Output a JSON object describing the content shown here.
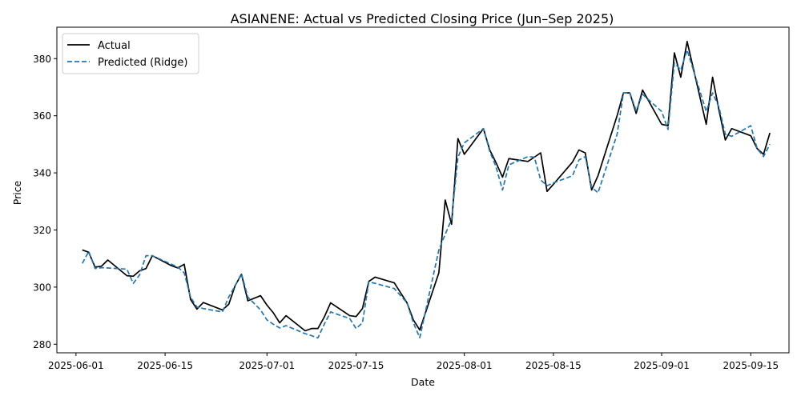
{
  "chart_data": {
    "type": "line",
    "title": "ASIANENE: Actual vs Predicted Closing Price (Jun–Sep 2025)",
    "xlabel": "Date",
    "ylabel": "Price",
    "xlim": [
      "2025-05-29",
      "2025-09-21"
    ],
    "ylim": [
      277,
      391
    ],
    "x_ticks": [
      "2025-06-01",
      "2025-06-15",
      "2025-07-01",
      "2025-07-15",
      "2025-08-01",
      "2025-08-15",
      "2025-09-01",
      "2025-09-15"
    ],
    "y_ticks": [
      280,
      300,
      320,
      340,
      360,
      380
    ],
    "grid": false,
    "legend_position": "upper-left",
    "series": [
      {
        "name": "Actual",
        "color": "#000000",
        "style": "solid",
        "points": [
          [
            "2025-06-02",
            313
          ],
          [
            "2025-06-03",
            312.2
          ],
          [
            "2025-06-04",
            307
          ],
          [
            "2025-06-05",
            307.3
          ],
          [
            "2025-06-06",
            309.5
          ],
          [
            "2025-06-09",
            304
          ],
          [
            "2025-06-10",
            303.8
          ],
          [
            "2025-06-11",
            305.7
          ],
          [
            "2025-06-12",
            306.5
          ],
          [
            "2025-06-13",
            311
          ],
          [
            "2025-06-16",
            307.5
          ],
          [
            "2025-06-17",
            306.7
          ],
          [
            "2025-06-18",
            308
          ],
          [
            "2025-06-19",
            295.7
          ],
          [
            "2025-06-20",
            292.3
          ],
          [
            "2025-06-21",
            294.6
          ],
          [
            "2025-06-24",
            292
          ],
          [
            "2025-06-25",
            294
          ],
          [
            "2025-06-26",
            300.5
          ],
          [
            "2025-06-27",
            304.5
          ],
          [
            "2025-06-28",
            295.2
          ],
          [
            "2025-06-30",
            297
          ],
          [
            "2025-07-01",
            293.7
          ],
          [
            "2025-07-02",
            291
          ],
          [
            "2025-07-03",
            287.5
          ],
          [
            "2025-07-04",
            290
          ],
          [
            "2025-07-07",
            284.7
          ],
          [
            "2025-07-08",
            285.5
          ],
          [
            "2025-07-09",
            285.5
          ],
          [
            "2025-07-10",
            289.5
          ],
          [
            "2025-07-11",
            294.5
          ],
          [
            "2025-07-14",
            290
          ],
          [
            "2025-07-15",
            289.7
          ],
          [
            "2025-07-16",
            292.5
          ],
          [
            "2025-07-17",
            302
          ],
          [
            "2025-07-18",
            303.5
          ],
          [
            "2025-07-21",
            301.5
          ],
          [
            "2025-07-23",
            294.5
          ],
          [
            "2025-07-24",
            288.5
          ],
          [
            "2025-07-25",
            285
          ],
          [
            "2025-07-28",
            305
          ],
          [
            "2025-07-29",
            330.5
          ],
          [
            "2025-07-30",
            322
          ],
          [
            "2025-07-31",
            352
          ],
          [
            "2025-08-01",
            346.5
          ],
          [
            "2025-08-04",
            355.5
          ],
          [
            "2025-08-05",
            348
          ],
          [
            "2025-08-06",
            343.5
          ],
          [
            "2025-08-07",
            338.5
          ],
          [
            "2025-08-08",
            345
          ],
          [
            "2025-08-11",
            344
          ],
          [
            "2025-08-12",
            345.5
          ],
          [
            "2025-08-13",
            347
          ],
          [
            "2025-08-14",
            333.5
          ],
          [
            "2025-08-15",
            336
          ],
          [
            "2025-08-18",
            343.8
          ],
          [
            "2025-08-19",
            348
          ],
          [
            "2025-08-20",
            347
          ],
          [
            "2025-08-21",
            334
          ],
          [
            "2025-08-22",
            339
          ],
          [
            "2025-08-25",
            360
          ],
          [
            "2025-08-26",
            368
          ],
          [
            "2025-08-27",
            368
          ],
          [
            "2025-08-28",
            360.8
          ],
          [
            "2025-08-29",
            369
          ],
          [
            "2025-09-01",
            357
          ],
          [
            "2025-09-02",
            356.5
          ],
          [
            "2025-09-03",
            382
          ],
          [
            "2025-09-04",
            373.5
          ],
          [
            "2025-09-05",
            386
          ],
          [
            "2025-09-08",
            357
          ],
          [
            "2025-09-09",
            373.5
          ],
          [
            "2025-09-10",
            362
          ],
          [
            "2025-09-11",
            351.5
          ],
          [
            "2025-09-12",
            355.5
          ],
          [
            "2025-09-15",
            353
          ],
          [
            "2025-09-16",
            348.5
          ],
          [
            "2025-09-17",
            346.5
          ],
          [
            "2025-09-18",
            354
          ]
        ]
      },
      {
        "name": "Predicted (Ridge)",
        "color": "#1f77b4",
        "style": "dashed",
        "points": [
          [
            "2025-06-02",
            308.3
          ],
          [
            "2025-06-03",
            312.5
          ],
          [
            "2025-06-04",
            306.5
          ],
          [
            "2025-06-05",
            306.8
          ],
          [
            "2025-06-06",
            306.7
          ],
          [
            "2025-06-09",
            306.3
          ],
          [
            "2025-06-10",
            301.3
          ],
          [
            "2025-06-11",
            304.3
          ],
          [
            "2025-06-12",
            311
          ],
          [
            "2025-06-13",
            311
          ],
          [
            "2025-06-16",
            308
          ],
          [
            "2025-06-17",
            307
          ],
          [
            "2025-06-18",
            305
          ],
          [
            "2025-06-19",
            296.5
          ],
          [
            "2025-06-20",
            293
          ],
          [
            "2025-06-21",
            292.5
          ],
          [
            "2025-06-24",
            291.3
          ],
          [
            "2025-06-25",
            296.5
          ],
          [
            "2025-06-26",
            300.5
          ],
          [
            "2025-06-27",
            304.7
          ],
          [
            "2025-06-28",
            296.5
          ],
          [
            "2025-06-30",
            292
          ],
          [
            "2025-07-01",
            288.5
          ],
          [
            "2025-07-02",
            287
          ],
          [
            "2025-07-03",
            285.7
          ],
          [
            "2025-07-04",
            286.5
          ],
          [
            "2025-07-07",
            283.7
          ],
          [
            "2025-07-08",
            283
          ],
          [
            "2025-07-09",
            282.2
          ],
          [
            "2025-07-10",
            287
          ],
          [
            "2025-07-11",
            291.3
          ],
          [
            "2025-07-14",
            289
          ],
          [
            "2025-07-15",
            285.5
          ],
          [
            "2025-07-16",
            287.5
          ],
          [
            "2025-07-17",
            301.8
          ],
          [
            "2025-07-18",
            301.3
          ],
          [
            "2025-07-21",
            299.5
          ],
          [
            "2025-07-23",
            294.5
          ],
          [
            "2025-07-24",
            287.5
          ],
          [
            "2025-07-25",
            282.3
          ],
          [
            "2025-07-28",
            313
          ],
          [
            "2025-07-29",
            318.5
          ],
          [
            "2025-07-30",
            323.7
          ],
          [
            "2025-07-31",
            345.5
          ],
          [
            "2025-08-01",
            350.5
          ],
          [
            "2025-08-04",
            355.5
          ],
          [
            "2025-08-05",
            347.5
          ],
          [
            "2025-08-06",
            342
          ],
          [
            "2025-08-07",
            334
          ],
          [
            "2025-08-08",
            342.8
          ],
          [
            "2025-08-11",
            345.7
          ],
          [
            "2025-08-12",
            345.5
          ],
          [
            "2025-08-13",
            337.5
          ],
          [
            "2025-08-14",
            335.5
          ],
          [
            "2025-08-15",
            336.5
          ],
          [
            "2025-08-18",
            339
          ],
          [
            "2025-08-19",
            344.5
          ],
          [
            "2025-08-20",
            345.7
          ],
          [
            "2025-08-21",
            335
          ],
          [
            "2025-08-22",
            333
          ],
          [
            "2025-08-25",
            353.5
          ],
          [
            "2025-08-26",
            368
          ],
          [
            "2025-08-27",
            368
          ],
          [
            "2025-08-28",
            361.8
          ],
          [
            "2025-08-29",
            367.5
          ],
          [
            "2025-09-01",
            361.5
          ],
          [
            "2025-09-02",
            355.2
          ],
          [
            "2025-09-03",
            378.5
          ],
          [
            "2025-09-04",
            376
          ],
          [
            "2025-09-05",
            383
          ],
          [
            "2025-09-08",
            361.5
          ],
          [
            "2025-09-09",
            368
          ],
          [
            "2025-09-10",
            363
          ],
          [
            "2025-09-11",
            353.5
          ],
          [
            "2025-09-12",
            352.8
          ],
          [
            "2025-09-15",
            356.5
          ],
          [
            "2025-09-16",
            348.5
          ],
          [
            "2025-09-17",
            345.7
          ],
          [
            "2025-09-18",
            350
          ]
        ]
      }
    ]
  }
}
